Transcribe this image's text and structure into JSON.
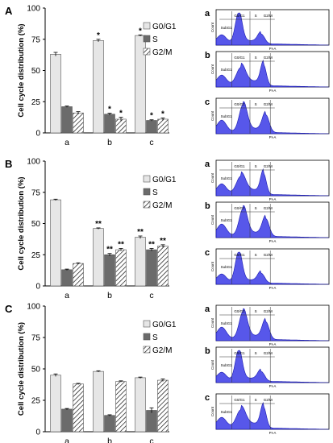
{
  "charts": [
    {
      "panel_label": "A",
      "type": "bar",
      "categories": [
        "a",
        "b",
        "c"
      ],
      "ylabel": "Cell cycle distribution (%)",
      "ylim": [
        0,
        100
      ],
      "yticks": [
        "0",
        "25",
        "50",
        "75",
        "100"
      ],
      "series": [
        {
          "name": "G0/G1",
          "values": [
            63,
            74,
            78
          ],
          "errors": [
            1.5,
            1,
            0.5
          ],
          "stars": [
            "",
            "*",
            "*"
          ]
        },
        {
          "name": "S",
          "values": [
            21,
            15,
            10
          ],
          "errors": [
            0.5,
            0.8,
            0.5
          ],
          "stars": [
            "",
            "*",
            "*"
          ]
        },
        {
          "name": "G2/M",
          "values": [
            16,
            11,
            11
          ],
          "errors": [
            1,
            1.5,
            1
          ],
          "stars": [
            "",
            "*",
            "*"
          ]
        }
      ],
      "legend_position": "top-right"
    },
    {
      "panel_label": "B",
      "type": "bar",
      "categories": [
        "a",
        "b",
        "c"
      ],
      "ylabel": "Cell cycle distribution (%)",
      "ylim": [
        0,
        100
      ],
      "yticks": [
        "0",
        "25",
        "50",
        "75",
        "100"
      ],
      "series": [
        {
          "name": "G0/G1",
          "values": [
            69,
            46,
            39
          ],
          "errors": [
            0.5,
            0.5,
            1
          ],
          "stars": [
            "",
            "**",
            "**"
          ]
        },
        {
          "name": "S",
          "values": [
            13,
            25,
            29
          ],
          "errors": [
            0.5,
            1,
            1
          ],
          "stars": [
            "",
            "**",
            "**"
          ]
        },
        {
          "name": "G2/M",
          "values": [
            18,
            29,
            32
          ],
          "errors": [
            0.5,
            1,
            1
          ],
          "stars": [
            "",
            "**",
            "**"
          ]
        }
      ],
      "legend_position": "top-right"
    },
    {
      "panel_label": "C",
      "type": "bar",
      "categories": [
        "a",
        "b",
        "c"
      ],
      "ylabel": "Cell cycle distribution (%)",
      "ylim": [
        0,
        100
      ],
      "yticks": [
        "0",
        "25",
        "50",
        "75",
        "100"
      ],
      "series": [
        {
          "name": "G0/G1",
          "values": [
            45,
            48,
            43
          ],
          "errors": [
            1,
            0.5,
            0.5
          ],
          "stars": [
            "",
            "",
            ""
          ]
        },
        {
          "name": "S",
          "values": [
            18,
            13,
            17
          ],
          "errors": [
            0.5,
            0.5,
            2
          ],
          "stars": [
            "",
            "",
            ""
          ]
        },
        {
          "name": "G2/M",
          "values": [
            38,
            40,
            41
          ],
          "errors": [
            0.5,
            0.5,
            1
          ],
          "stars": [
            "",
            "",
            ""
          ]
        }
      ],
      "legend_position": "top-right"
    }
  ],
  "histograms": [
    {
      "label": "a",
      "x_axis": "PI-A",
      "y_axis": "Count",
      "gates": [
        "SubG1",
        "G0/G1",
        "S",
        "G2/M"
      ]
    },
    {
      "label": "b",
      "x_axis": "PI-A",
      "y_axis": "Count",
      "gates": [
        "SubG1",
        "G0/G1",
        "S",
        "G2/M"
      ]
    },
    {
      "label": "c",
      "x_axis": "PI-A",
      "y_axis": "Count",
      "gates": [
        "SubG1",
        "G0/G1",
        "S",
        "G2/M"
      ]
    }
  ],
  "colors": {
    "g0g1": "#e6e6e6",
    "s": "#6b6b6b",
    "hist_fill": "#3a3ae6",
    "hist_line": "#1a1ab0"
  }
}
